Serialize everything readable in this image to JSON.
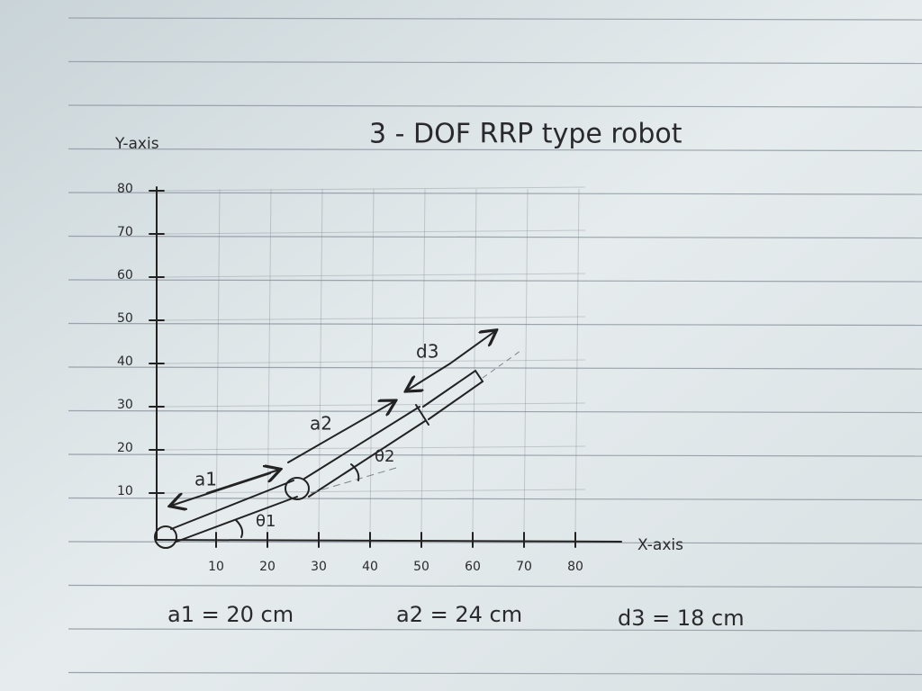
{
  "header": {
    "title": "3 - DOF RRP type robot"
  },
  "axes": {
    "y_label": "Y-axis",
    "x_label": "X-axis",
    "y_ticks": [
      10,
      20,
      30,
      40,
      50,
      60,
      70,
      80
    ],
    "x_ticks": [
      10,
      20,
      30,
      40,
      50,
      60,
      70,
      80
    ]
  },
  "labels": {
    "link1": "a1",
    "link2": "a2",
    "prismatic": "d3",
    "angle1": "θ1",
    "angle2": "θ2"
  },
  "parameters": [
    "a1 = 20 cm",
    "a2 = 24 cm",
    "d3 = 18 cm"
  ]
}
